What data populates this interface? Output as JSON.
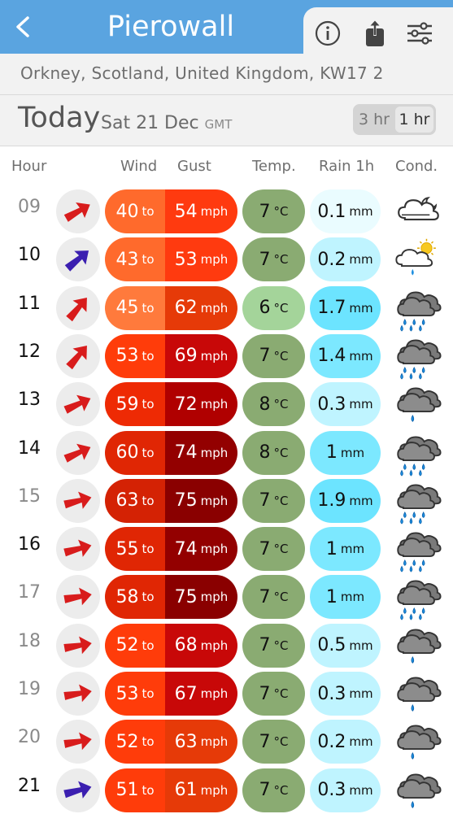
{
  "header": {
    "title": "Pierowall",
    "back_icon": "chevron-left-icon",
    "tools": [
      "info-icon",
      "share-icon",
      "settings-sliders-icon"
    ]
  },
  "location": "Orkney, Scotland, United Kingdom, KW17 2",
  "day": {
    "today_label": "Today",
    "date": "Sat 21 Dec",
    "timezone": "GMT",
    "segments": [
      "3 hr",
      "1 hr"
    ],
    "selected_segment": "1 hr"
  },
  "columns": {
    "hour": "Hour",
    "wind": "Wind",
    "gust": "Gust",
    "temp": "Temp.",
    "rain": "Rain 1h",
    "cond": "Cond."
  },
  "units": {
    "to": "to",
    "speed": "mph",
    "temp": "°C",
    "rain": "mm"
  },
  "rows": [
    {
      "hour": "09",
      "wind": "40",
      "gust": "54",
      "temp": "7",
      "rain": "0.1",
      "cond": "cloudy-icon",
      "arrow_color": "#d81c1c",
      "direction_deg": 60,
      "wind_color": "#ff6a2c",
      "gust_color": "#ff3a0f",
      "temp_color": "#8aab72",
      "rain_color": "#eafcff"
    },
    {
      "hour": "10",
      "wind": "43",
      "gust": "53",
      "temp": "7",
      "rain": "0.2",
      "cond": "sun-cloud-rain-icon",
      "arrow_color": "#3b1fb0",
      "direction_deg": 50,
      "wind_color": "#ff6a2c",
      "gust_color": "#ff3a0f",
      "temp_color": "#8aab72",
      "rain_color": "#bff4ff"
    },
    {
      "hour": "11",
      "wind": "45",
      "gust": "62",
      "temp": "6",
      "rain": "1.7",
      "cond": "heavy-rain-icon",
      "arrow_color": "#d81c1c",
      "direction_deg": 40,
      "wind_color": "#ff7a3c",
      "gust_color": "#e63a08",
      "temp_color": "#a4d49a",
      "rain_color": "#6ce4ff"
    },
    {
      "hour": "12",
      "wind": "53",
      "gust": "69",
      "temp": "7",
      "rain": "1.4",
      "cond": "heavy-rain-icon",
      "arrow_color": "#d81c1c",
      "direction_deg": 40,
      "wind_color": "#ff3c0a",
      "gust_color": "#c80808",
      "temp_color": "#8aab72",
      "rain_color": "#7ce8ff"
    },
    {
      "hour": "13",
      "wind": "59",
      "gust": "72",
      "temp": "8",
      "rain": "0.3",
      "cond": "rain-icon",
      "arrow_color": "#d81c1c",
      "direction_deg": 65,
      "wind_color": "#ee2a04",
      "gust_color": "#b00000",
      "temp_color": "#8aab72",
      "rain_color": "#bff4ff"
    },
    {
      "hour": "14",
      "wind": "60",
      "gust": "74",
      "temp": "8",
      "rain": "1",
      "cond": "heavy-rain-icon",
      "arrow_color": "#d81c1c",
      "direction_deg": 65,
      "wind_color": "#e02604",
      "gust_color": "#930000",
      "temp_color": "#8aab72",
      "rain_color": "#7ce8ff"
    },
    {
      "hour": "15",
      "wind": "63",
      "gust": "75",
      "temp": "7",
      "rain": "1.9",
      "cond": "heavy-rain-icon",
      "arrow_color": "#d81c1c",
      "direction_deg": 75,
      "wind_color": "#d42204",
      "gust_color": "#8a0000",
      "temp_color": "#8aab72",
      "rain_color": "#6ce4ff"
    },
    {
      "hour": "16",
      "wind": "55",
      "gust": "74",
      "temp": "7",
      "rain": "1",
      "cond": "heavy-rain-icon",
      "arrow_color": "#d81c1c",
      "direction_deg": 75,
      "wind_color": "#e02604",
      "gust_color": "#930000",
      "temp_color": "#8aab72",
      "rain_color": "#7ce8ff"
    },
    {
      "hour": "17",
      "wind": "58",
      "gust": "75",
      "temp": "7",
      "rain": "1",
      "cond": "heavy-rain-icon",
      "arrow_color": "#d81c1c",
      "direction_deg": 80,
      "wind_color": "#e02604",
      "gust_color": "#8a0000",
      "temp_color": "#8aab72",
      "rain_color": "#7ce8ff"
    },
    {
      "hour": "18",
      "wind": "52",
      "gust": "68",
      "temp": "7",
      "rain": "0.5",
      "cond": "rain-icon",
      "arrow_color": "#d81c1c",
      "direction_deg": 80,
      "wind_color": "#ff3c0a",
      "gust_color": "#c80808",
      "temp_color": "#8aab72",
      "rain_color": "#bff4ff"
    },
    {
      "hour": "19",
      "wind": "53",
      "gust": "67",
      "temp": "7",
      "rain": "0.3",
      "cond": "rain-icon",
      "arrow_color": "#d81c1c",
      "direction_deg": 80,
      "wind_color": "#ff3c0a",
      "gust_color": "#c80808",
      "temp_color": "#8aab72",
      "rain_color": "#bff4ff"
    },
    {
      "hour": "20",
      "wind": "52",
      "gust": "63",
      "temp": "7",
      "rain": "0.2",
      "cond": "rain-icon",
      "arrow_color": "#d81c1c",
      "direction_deg": 80,
      "wind_color": "#ff3c0a",
      "gust_color": "#e63a08",
      "temp_color": "#8aab72",
      "rain_color": "#bff4ff"
    },
    {
      "hour": "21",
      "wind": "51",
      "gust": "61",
      "temp": "7",
      "rain": "0.3",
      "cond": "rain-icon",
      "arrow_color": "#3b1fb0",
      "direction_deg": 75,
      "wind_color": "#ff3c0a",
      "gust_color": "#e63a08",
      "temp_color": "#8aab72",
      "rain_color": "#bff4ff"
    }
  ],
  "colors": {
    "topbar": "#5aa4e0",
    "past_hour": "#8a8a8a",
    "current_hour": "#111111"
  }
}
